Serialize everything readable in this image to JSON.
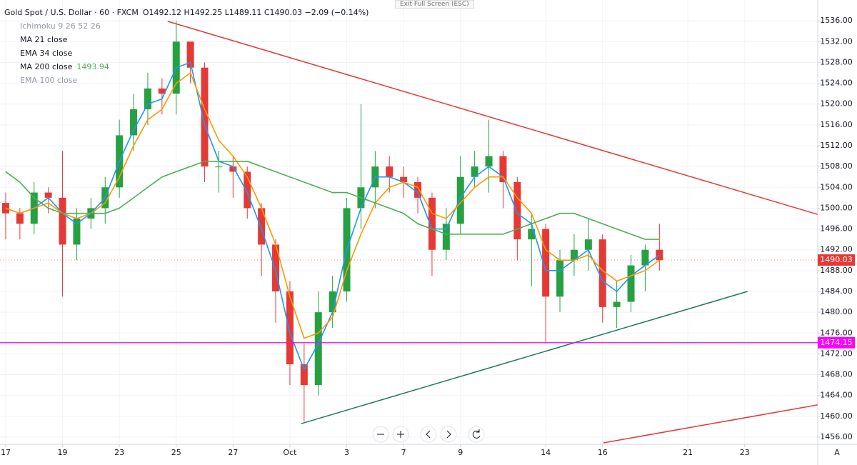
{
  "chart_data": {
    "type": "candlestick",
    "title": "Gold Spot / U.S. Dollar · 60 · FXCM",
    "ohlc_text": "O1492.12 H1492.25 L1489.11 C1490.03 −2.09 (−0.14%)",
    "exit_fullscreen": "Exit Full Screen (ESC)",
    "axis_corner": "A",
    "xlim": [
      -0.2,
      28.57
    ],
    "ylim": [
      1454.9,
      1540
    ],
    "grid": true,
    "up_color": "#26a041",
    "down_color": "#e53935",
    "x": [
      0,
      0.5,
      1,
      1.5,
      2,
      2.5,
      3,
      3.5,
      4,
      4.5,
      5,
      5.5,
      6,
      6.5,
      7,
      7.5,
      8,
      8.5,
      9,
      9.5,
      10,
      10.5,
      11,
      11.5,
      12,
      12.5,
      13,
      13.5,
      14,
      14.5,
      15,
      15.5,
      16,
      16.5,
      17,
      17.5,
      18,
      18.5,
      19,
      19.5,
      20,
      20.5,
      21,
      21.5,
      22,
      22.5,
      23
    ],
    "open": [
      1501,
      1499,
      1497,
      1503,
      1502,
      1493,
      1498,
      1500,
      1504,
      1514,
      1519,
      1523,
      1522,
      1532,
      1527,
      1508,
      1508,
      1507,
      1500,
      1493,
      1484,
      1470,
      1466,
      1480,
      1484,
      1500,
      1504,
      1508,
      1506,
      1505,
      1502,
      1492,
      1497,
      1506,
      1508,
      1510,
      1505,
      1494,
      1496,
      1483,
      1490,
      1492,
      1494,
      1481,
      1482,
      1489,
      1492
    ],
    "high": [
      1503,
      1500,
      1505,
      1504,
      1511,
      1500,
      1502,
      1506,
      1517,
      1522,
      1526,
      1525,
      1536,
      1532,
      1528,
      1511,
      1510,
      1508,
      1501,
      1494,
      1486,
      1474,
      1484,
      1487,
      1502,
      1520,
      1511,
      1510,
      1508,
      1506,
      1503,
      1500,
      1510,
      1511,
      1517,
      1511,
      1506,
      1499,
      1497,
      1492,
      1495,
      1498,
      1495,
      1486,
      1491,
      1493,
      1497
    ],
    "low": [
      1494,
      1494,
      1495,
      1499,
      1483,
      1490,
      1496,
      1497,
      1502,
      1511,
      1516,
      1518,
      1518,
      1524,
      1505,
      1503,
      1502,
      1498,
      1487,
      1478,
      1466,
      1459,
      1464,
      1477,
      1482,
      1496,
      1500,
      1503,
      1502,
      1499,
      1487,
      1490,
      1495,
      1504,
      1503,
      1500,
      1490,
      1485,
      1474,
      1480,
      1487,
      1488,
      1478,
      1477,
      1480,
      1484,
      1488
    ],
    "close": [
      1499,
      1497,
      1503,
      1502,
      1493,
      1498,
      1500,
      1504,
      1514,
      1519,
      1523,
      1522,
      1532,
      1527,
      1508,
      1508,
      1507,
      1500,
      1493,
      1484,
      1470,
      1466,
      1480,
      1484,
      1500,
      1504,
      1508,
      1506,
      1505,
      1502,
      1492,
      1497,
      1506,
      1508,
      1510,
      1505,
      1494,
      1496,
      1483,
      1490,
      1492,
      1494,
      1481,
      1482,
      1489,
      1492,
      1490
    ],
    "series": [
      {
        "name": "Ichimoku 9 26 52 26",
        "visible": false
      },
      {
        "name": "MA 21 close",
        "color": "#2196f3",
        "visible": true,
        "values": [
          1500,
          1499,
          1500,
          1502,
          1499,
          1497,
          1499,
          1502,
          1509,
          1515,
          1520,
          1521,
          1527,
          1528,
          1516,
          1509,
          1508,
          1503,
          1496,
          1488,
          1476,
          1469,
          1474,
          1480,
          1492,
          1500,
          1506,
          1506,
          1505,
          1503,
          1496,
          1496,
          1502,
          1506,
          1508,
          1506,
          1499,
          1497,
          1488,
          1488,
          1490,
          1492,
          1486,
          1484,
          1487,
          1489,
          1491
        ]
      },
      {
        "name": "EMA 34 close",
        "color": "#ff9800",
        "visible": true,
        "values": [
          1500,
          1499,
          1500,
          1501,
          1499,
          1498,
          1499,
          1501,
          1506,
          1512,
          1517,
          1519,
          1524,
          1526,
          1519,
          1513,
          1510,
          1506,
          1500,
          1493,
          1483,
          1475,
          1476,
          1479,
          1488,
          1495,
          1501,
          1504,
          1505,
          1504,
          1499,
          1498,
          1501,
          1504,
          1506,
          1506,
          1502,
          1499,
          1492,
          1490,
          1490,
          1491,
          1488,
          1486,
          1487,
          1488,
          1490
        ]
      },
      {
        "name": "MA 200 close",
        "color": "#4caf50",
        "visible": true,
        "last_value": 1493.94,
        "values": [
          1507,
          1505,
          1502,
          1500,
          1499,
          1499,
          1499,
          1499,
          1500,
          1502,
          1504,
          1506,
          1507,
          1508,
          1509,
          1509,
          1509,
          1509,
          1508,
          1507,
          1506,
          1505,
          1504,
          1503,
          1503,
          1502,
          1501,
          1500,
          1499,
          1497,
          1496,
          1495,
          1495,
          1495,
          1495,
          1495,
          1496,
          1497,
          1498,
          1499,
          1499,
          1498,
          1497,
          1496,
          1495,
          1494,
          1494
        ]
      },
      {
        "name": "EMA 100 close",
        "visible": false
      }
    ],
    "trendlines": [
      {
        "color": "#e53935",
        "x": [
          5.7,
          28.57
        ],
        "y": [
          1535.9,
          1498.8
        ]
      },
      {
        "color": "#1e7a5a",
        "x": [
          10.4,
          26.1
        ],
        "y": [
          1458.6,
          1484
        ]
      },
      {
        "color": "#e53935",
        "x": [
          21.03,
          28.57
        ],
        "y": [
          1454.9,
          1462.2
        ]
      }
    ],
    "hline": {
      "value": 1474.15,
      "color": "#ff00ff"
    },
    "last_price": 1490.03,
    "xticks": [
      {
        "value": 0,
        "label": "17"
      },
      {
        "value": 2,
        "label": "19"
      },
      {
        "value": 4,
        "label": "23"
      },
      {
        "value": 6,
        "label": "25"
      },
      {
        "value": 8,
        "label": "27"
      },
      {
        "value": 10,
        "label": "Oct"
      },
      {
        "value": 12,
        "label": "3"
      },
      {
        "value": 14,
        "label": "7"
      },
      {
        "value": 16,
        "label": "9"
      },
      {
        "value": 19,
        "label": "14"
      },
      {
        "value": 21,
        "label": "16"
      },
      {
        "value": 24,
        "label": "21"
      },
      {
        "value": 26,
        "label": "23"
      }
    ],
    "yticks": [
      {
        "value": 1456,
        "label": "1456.00"
      },
      {
        "value": 1460,
        "label": "1460.00"
      },
      {
        "value": 1464,
        "label": "1464.00"
      },
      {
        "value": 1468,
        "label": "1468.00"
      },
      {
        "value": 1472,
        "label": "1472.00"
      },
      {
        "value": 1476,
        "label": "1476.00"
      },
      {
        "value": 1480,
        "label": "1480.00"
      },
      {
        "value": 1484,
        "label": "1484.00"
      },
      {
        "value": 1488,
        "label": "1488.00"
      },
      {
        "value": 1492,
        "label": "1492.00"
      },
      {
        "value": 1496,
        "label": "1496.00"
      },
      {
        "value": 1500,
        "label": "1500.00"
      },
      {
        "value": 1504,
        "label": "1504.00"
      },
      {
        "value": 1508,
        "label": "1508.00"
      },
      {
        "value": 1512,
        "label": "1512.00"
      },
      {
        "value": 1516,
        "label": "1516.00"
      },
      {
        "value": 1520,
        "label": "1520.00"
      },
      {
        "value": 1524,
        "label": "1524.00"
      },
      {
        "value": 1528,
        "label": "1528.00"
      },
      {
        "value": 1532,
        "label": "1532.00"
      },
      {
        "value": 1536,
        "label": "1536.00"
      }
    ]
  }
}
